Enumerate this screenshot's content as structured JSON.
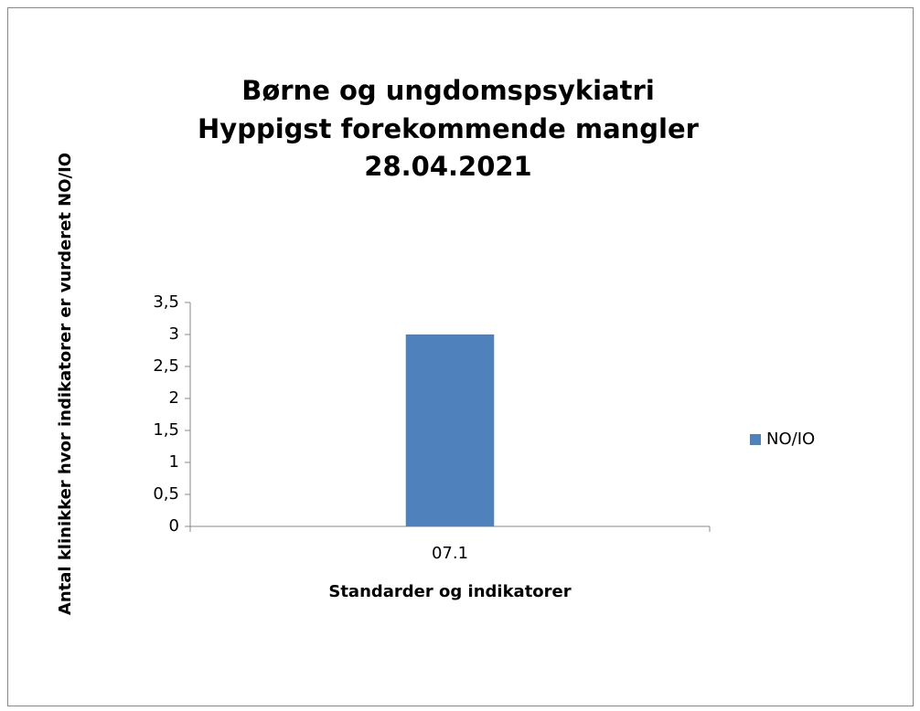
{
  "chart_data": {
    "type": "bar",
    "title": [
      "Børne og ungdomspsykiatri",
      "Hyppigst forekommende mangler",
      "28.04.2021"
    ],
    "x_label": "Standarder og indikatorer",
    "y_label": "Antal klinikker hvor indikatorer er vurderet NO/IO",
    "categories": [
      "07.1"
    ],
    "series": [
      {
        "name": "NO/IO",
        "color": "#4f81bd",
        "values": [
          3
        ]
      }
    ],
    "ylim": [
      0,
      3.5
    ],
    "yticks": [
      0,
      {
        "value": 0.5,
        "label": "0,5"
      },
      1,
      {
        "value": 1.5,
        "label": "1,5"
      },
      2,
      {
        "value": 2.5,
        "label": "2,5"
      },
      3,
      {
        "value": 3.5,
        "label": "3,5"
      }
    ],
    "legend": "right"
  }
}
